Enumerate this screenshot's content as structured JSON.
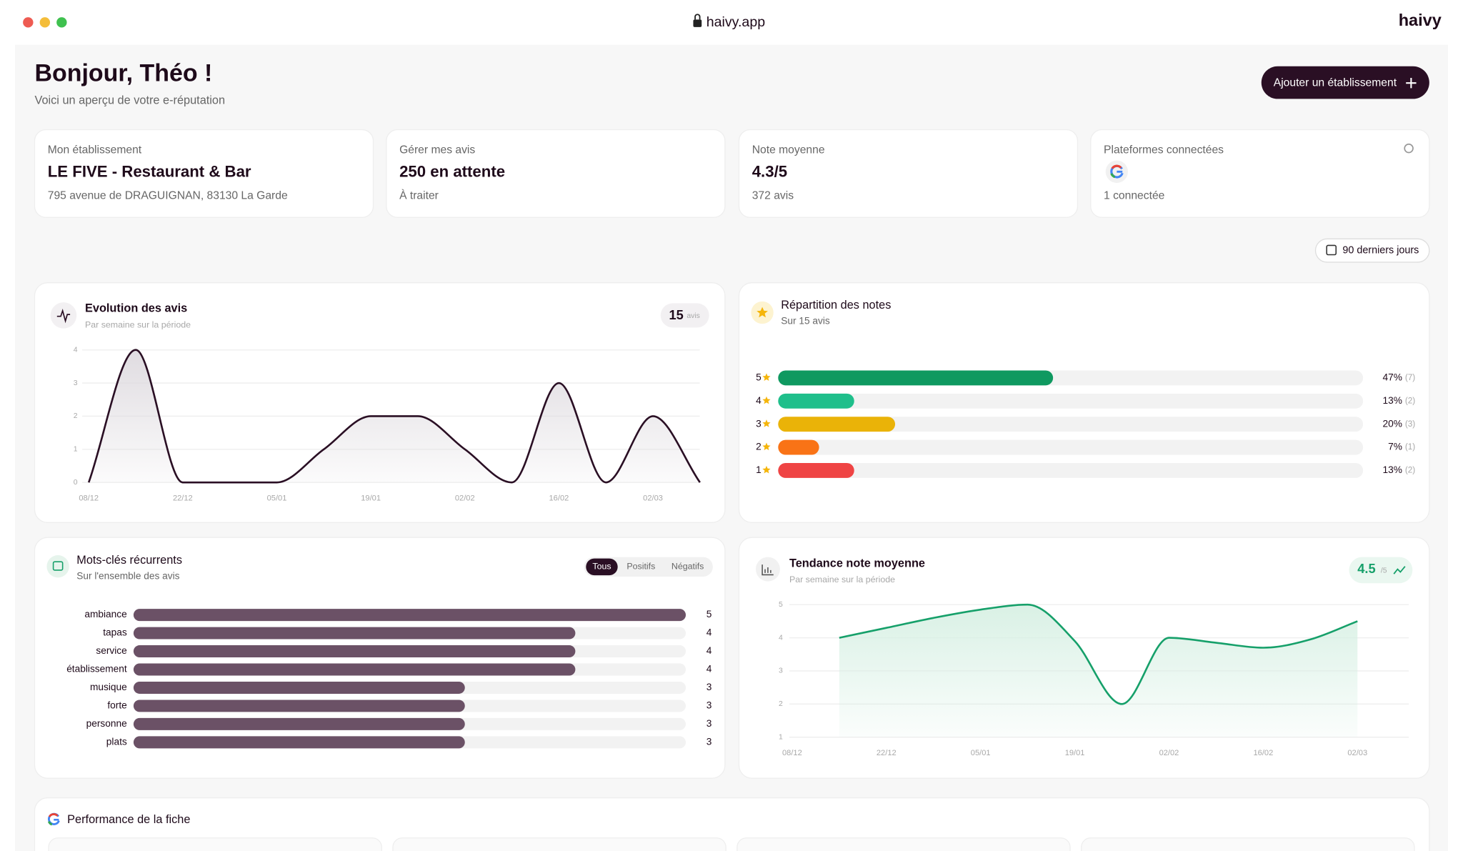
{
  "browser": {
    "url": "haivy.app",
    "brand": "haivy"
  },
  "header": {
    "title": "Bonjour, Théo !",
    "subtitle": "Voici un aperçu de votre e-réputation",
    "button": "Ajouter un établissement"
  },
  "cards": [
    {
      "label": "Mon établissement",
      "value": "LE FIVE - Restaurant & Bar",
      "sub": "795 avenue de DRAGUIGNAN, 83130 La Garde"
    },
    {
      "label": "Gérer mes avis",
      "value": "250 en attente",
      "sub": "À traiter"
    },
    {
      "label": "Note moyenne",
      "value": "4.3/5",
      "sub": "372 avis"
    },
    {
      "label": "Plateformes connectées",
      "sub": "1 connectée"
    }
  ],
  "period": "90 derniers jours",
  "chart_data": [
    {
      "type": "line",
      "title": "Evolution des avis",
      "subtitle": "Par semaine sur la période",
      "badge_value": 15,
      "badge_unit": "avis",
      "categories": [
        "08/12",
        null,
        "22/12",
        null,
        "05/01",
        null,
        "19/01",
        null,
        "02/02",
        null,
        "16/02",
        null,
        "02/03",
        null
      ],
      "values": [
        0,
        4,
        0,
        0,
        0,
        1,
        2,
        2,
        1,
        0,
        3,
        0,
        2,
        0
      ],
      "ylim": [
        0,
        4
      ],
      "yticks": [
        0,
        1,
        2,
        3,
        4
      ],
      "grid": true,
      "color": "#2a0f24",
      "fill": "#dcd8dd"
    },
    {
      "type": "bar",
      "orientation": "horizontal",
      "title": "Répartition des notes",
      "subtitle": "Sur 15 avis",
      "categories": [
        "5",
        "4",
        "3",
        "2",
        "1"
      ],
      "values": [
        47,
        13,
        20,
        7,
        13
      ],
      "value_labels": [
        "47%",
        "13%",
        "20%",
        "7%",
        "13%"
      ],
      "count_labels": [
        "(7)",
        "(2)",
        "(3)",
        "(1)",
        "(2)"
      ],
      "colors": [
        "#0f9960",
        "#1fbf8b",
        "#eab308",
        "#f97316",
        "#ef4444"
      ],
      "xlim": [
        0,
        100
      ]
    },
    {
      "type": "bar",
      "orientation": "horizontal",
      "title": "Mots-clés récurrents",
      "subtitle": "Sur l'ensemble des avis",
      "filters": [
        "Tous",
        "Positifs",
        "Négatifs"
      ],
      "categories": [
        "ambiance",
        "tapas",
        "service",
        "établissement",
        "musique",
        "forte",
        "personne",
        "plats"
      ],
      "values": [
        5,
        4,
        4,
        4,
        3,
        3,
        3,
        3
      ],
      "color": "#6b5166",
      "xlim": [
        0,
        5
      ]
    },
    {
      "type": "line",
      "title": "Tendance note moyenne",
      "subtitle": "Par semaine sur la période",
      "badge_value": 4.5,
      "badge_unit": "/5",
      "categories": [
        "08/12",
        null,
        "22/12",
        null,
        "05/01",
        null,
        "19/01",
        null,
        "02/02",
        null,
        "16/02",
        null,
        "02/03"
      ],
      "values": [
        null,
        4.0,
        4.3,
        4.6,
        4.85,
        5.0,
        3.9,
        2.0,
        4.0,
        3.85,
        3.7,
        3.95,
        4.5
      ],
      "ylim": [
        1,
        5
      ],
      "yticks": [
        1,
        2,
        3,
        4,
        5
      ],
      "grid": true,
      "color": "#16a06a",
      "fill": "#d5efe2"
    }
  ],
  "performance": {
    "title": "Performance de la fiche"
  }
}
